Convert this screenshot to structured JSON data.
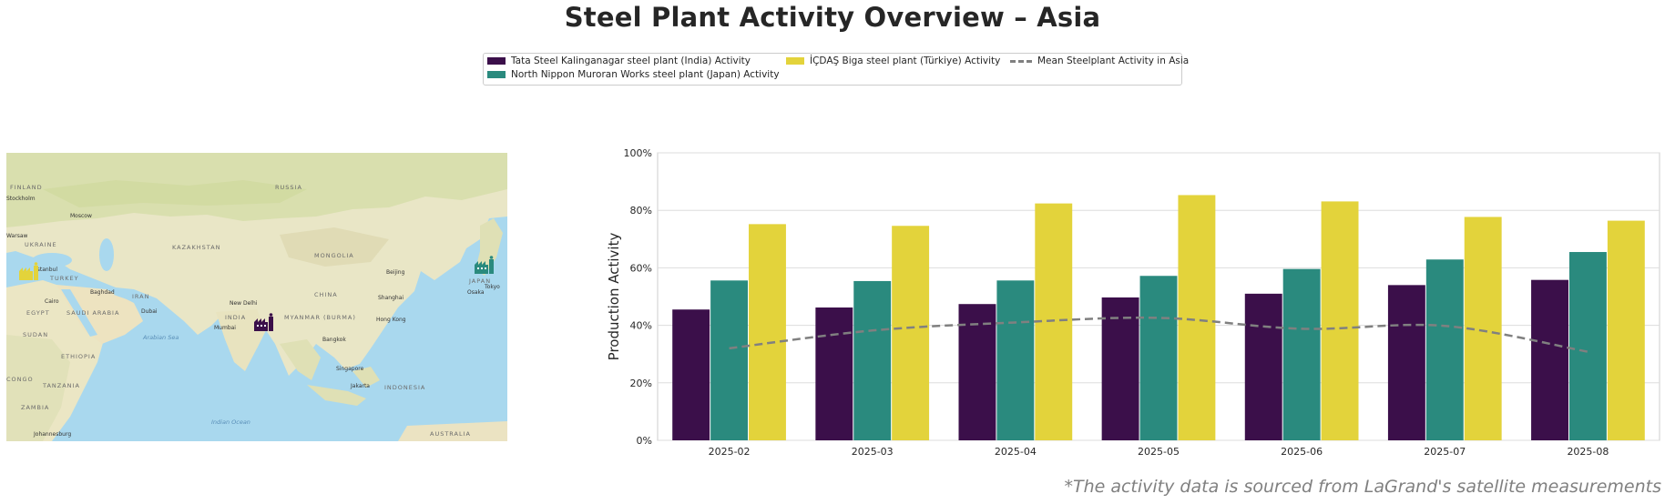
{
  "title": "Steel Plant Activity Overview – Asia",
  "footnote": "*The activity data is sourced from LaGrand's satellite measurements",
  "legend": {
    "items": [
      {
        "label": "Tata Steel Kalinganagar steel plant (India) Activity",
        "color": "#3b0f4a",
        "type": "bar"
      },
      {
        "label": "North Nippon Muroran Works steel plant (Japan) Activity",
        "color": "#2a8a7e",
        "type": "bar"
      },
      {
        "label": "İÇDAŞ Biga steel plant (Türkiye) Activity",
        "color": "#e3d33b",
        "type": "bar"
      },
      {
        "label": "Mean Steelplant Activity in Asia",
        "color": "#808080",
        "type": "dashed-line"
      }
    ]
  },
  "map": {
    "labels": {
      "russia": "RUSSIA",
      "finland": "FINLAND",
      "stockholm": "Stockholm",
      "moscow": "Moscow",
      "warsaw": "Warsaw",
      "ukraine": "UKRAINE",
      "kazakhstan": "KAZAKHSTAN",
      "mongolia": "MONGOLIA",
      "istanbul": "Istanbul",
      "turkey": "TURKEY",
      "beijing": "Beijing",
      "japan": "JAPAN",
      "tokyo": "Tokyo",
      "osaka": "Osaka",
      "baghdad": "Baghdad",
      "iran": "IRAN",
      "china": "CHINA",
      "shanghai": "Shanghai",
      "cairo": "Cairo",
      "egypt": "EGYPT",
      "saudi": "SAUDI ARABIA",
      "dubai": "Dubai",
      "newdelhi": "New Delhi",
      "india": "INDIA",
      "myanmar": "MYANMAR (BURMA)",
      "hongkong": "Hong Kong",
      "sudan": "SUDAN",
      "mumbai": "Mumbai",
      "arabiansea": "Arabian Sea",
      "bangkok": "Bangkok",
      "ethiopia": "ETHIOPIA",
      "singapore": "Singapore",
      "congo": "CONGO",
      "tanzania": "TANZANIA",
      "jakarta": "Jakarta",
      "indonesia": "INDONESIA",
      "zambia": "ZAMBIA",
      "indianocean": "Indian Ocean",
      "johannesburg": "Johannesburg",
      "australia": "AUSTRALIA"
    },
    "markers": [
      {
        "name": "india-plant",
        "color": "#3b0f4a"
      },
      {
        "name": "japan-plant",
        "color": "#2a8a7e"
      },
      {
        "name": "turkiye-plant",
        "color": "#e3d33b"
      }
    ]
  },
  "chart_data": {
    "type": "bar",
    "title": "",
    "xlabel": "",
    "ylabel": "Production Activity",
    "ylim": [
      0,
      100
    ],
    "yticks": [
      "0%",
      "20%",
      "40%",
      "60%",
      "80%",
      "100%"
    ],
    "ytick_values": [
      0,
      20,
      40,
      60,
      80,
      100
    ],
    "grid": true,
    "categories": [
      "2025-02",
      "2025-03",
      "2025-04",
      "2025-05",
      "2025-06",
      "2025-07",
      "2025-08"
    ],
    "series": [
      {
        "name": "Tata Steel Kalinganagar steel plant (India) Activity",
        "color": "#3b0f4a",
        "values": [
          45.5,
          46.2,
          47.4,
          49.7,
          51.0,
          54.0,
          55.8
        ]
      },
      {
        "name": "North Nippon Muroran Works steel plant (Japan) Activity",
        "color": "#2a8a7e",
        "values": [
          55.6,
          55.4,
          55.6,
          57.2,
          59.6,
          62.9,
          65.5
        ]
      },
      {
        "name": "İÇDAŞ Biga steel plant (Türkiye) Activity",
        "color": "#e3d33b",
        "values": [
          75.2,
          74.6,
          82.4,
          85.3,
          83.1,
          77.7,
          76.4
        ]
      }
    ],
    "mean_line": {
      "name": "Mean Steelplant Activity in Asia",
      "color": "#808080",
      "values": [
        32.0,
        38.2,
        41.0,
        42.6,
        38.8,
        39.8,
        30.8
      ]
    }
  }
}
